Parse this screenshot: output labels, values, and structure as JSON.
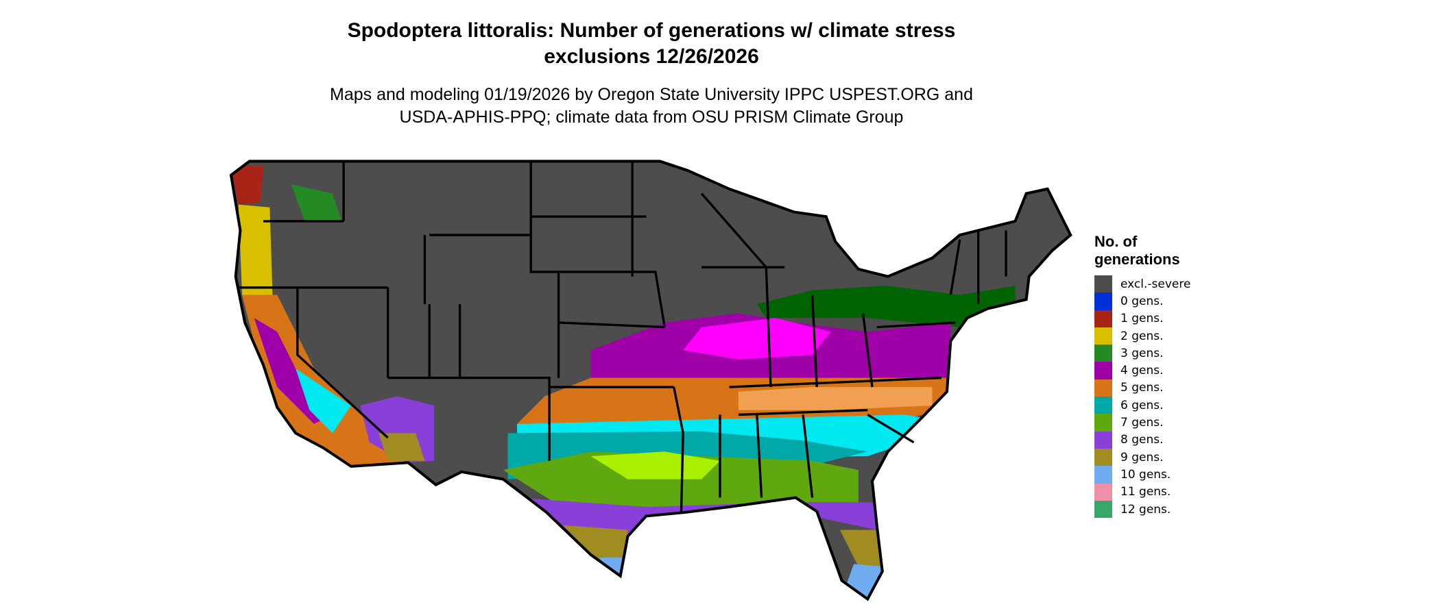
{
  "title": {
    "line1": "Spodoptera littoralis: Number of generations w/ climate stress",
    "line2": "exclusions 12/26/2026"
  },
  "subtitle": {
    "line1": "Maps and modeling 01/19/2026 by Oregon State University IPPC USPEST.ORG and",
    "line2": "USDA-APHIS-PPQ; climate data from OSU PRISM Climate Group"
  },
  "legend": {
    "title_line1": "No. of",
    "title_line2": "generations",
    "items": [
      {
        "label": "excl.-severe",
        "color": "#4d4d4d"
      },
      {
        "label": "0 gens.",
        "color": "#0030d8"
      },
      {
        "label": "1 gens.",
        "color": "#a82416"
      },
      {
        "label": "2 gens.",
        "color": "#d8c000"
      },
      {
        "label": "3 gens.",
        "color": "#248a24"
      },
      {
        "label": "4 gens.",
        "color": "#a000a8"
      },
      {
        "label": "5 gens.",
        "color": "#d87418"
      },
      {
        "label": "6 gens.",
        "color": "#00a8a8"
      },
      {
        "label": "7 gens.",
        "color": "#60a810"
      },
      {
        "label": "8 gens.",
        "color": "#8840d8"
      },
      {
        "label": "9 gens.",
        "color": "#a08c20"
      },
      {
        "label": "10 gens.",
        "color": "#70acf0"
      },
      {
        "label": "11 gens.",
        "color": "#f090a8"
      },
      {
        "label": "12 gens.",
        "color": "#38a868"
      }
    ]
  },
  "map_colors": {
    "magenta_4": "#ff00ff",
    "light_orange_5": "#f0a050",
    "cyan_6": "#00e8f0",
    "lime_7": "#a8f000",
    "dark_green_3": "#006400"
  }
}
